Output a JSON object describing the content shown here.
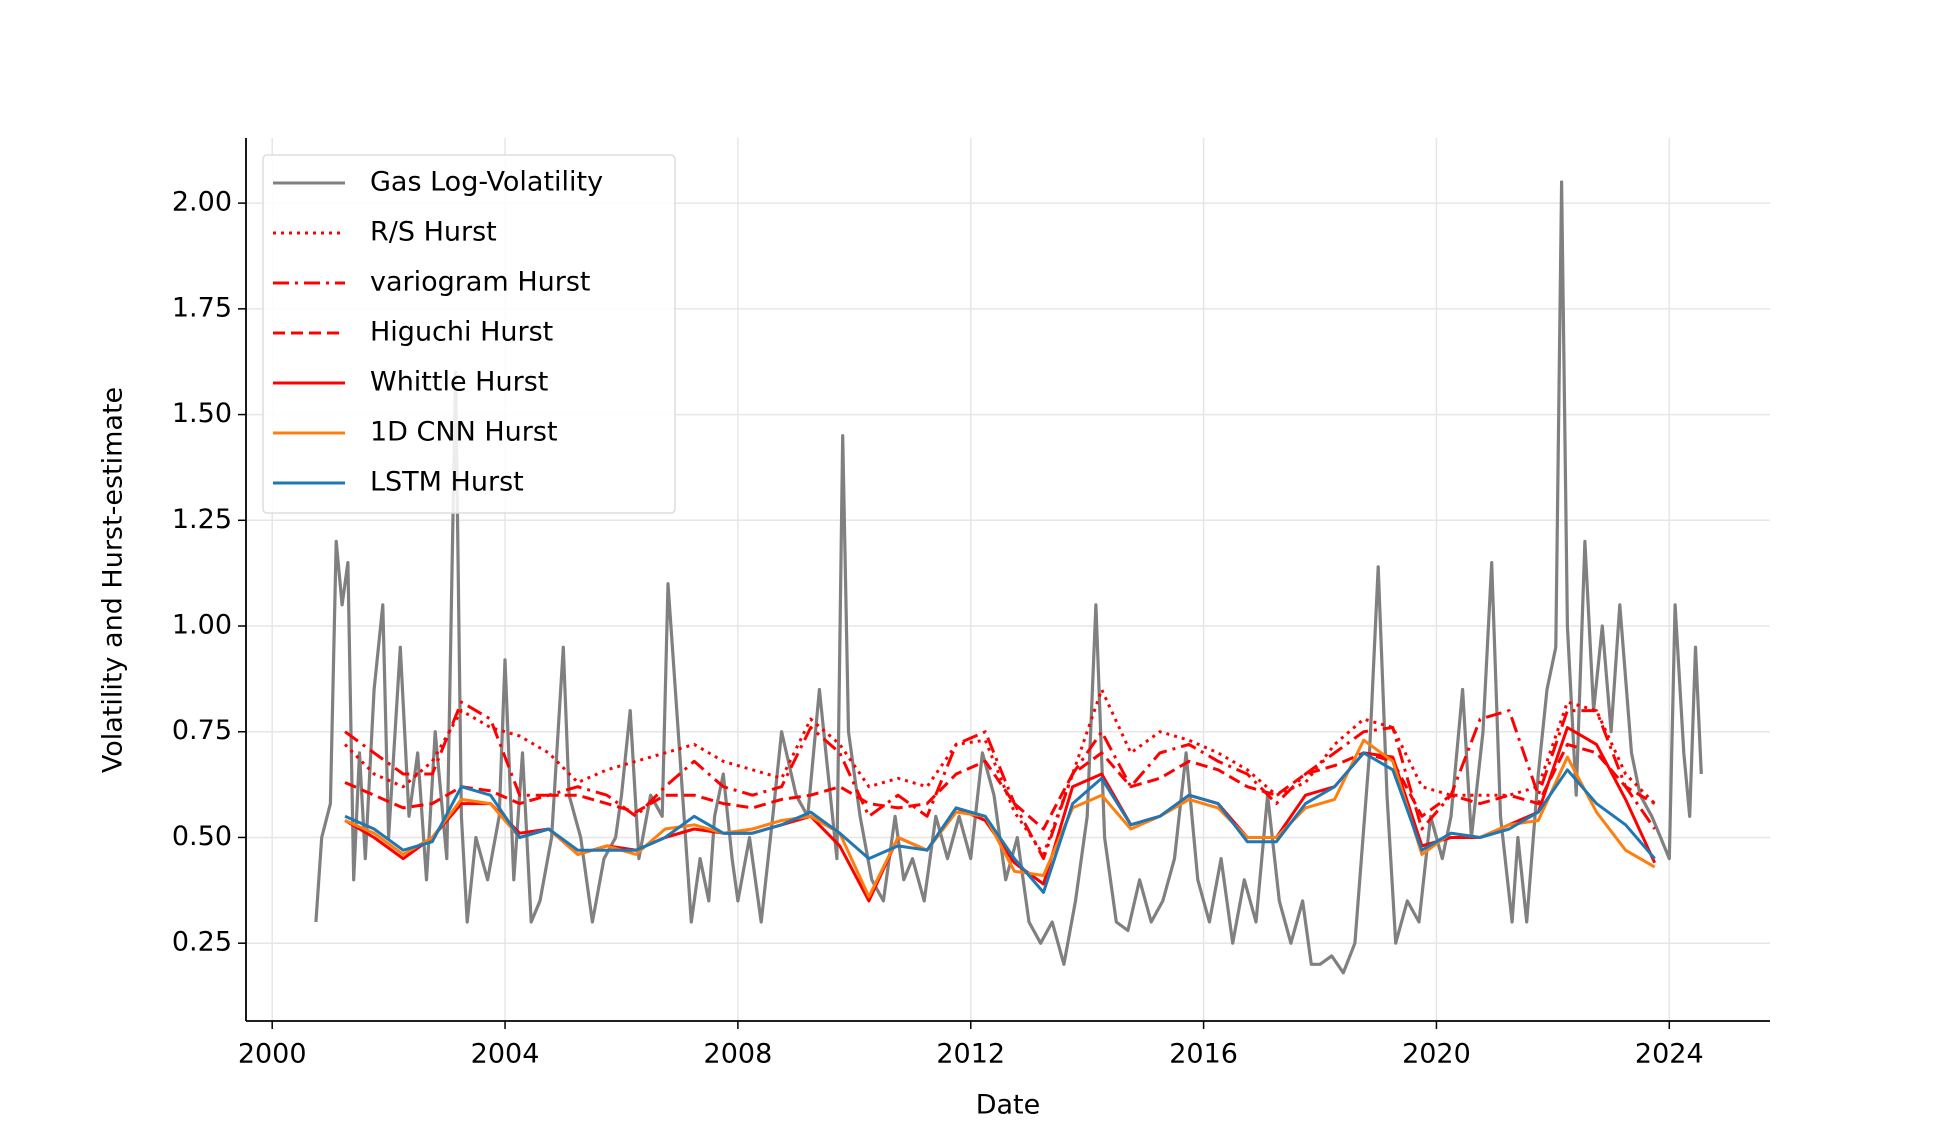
{
  "chart_data": {
    "type": "line",
    "xlabel": "Date",
    "ylabel": "Volatility and Hurst-estimate",
    "xlim": [
      1999.55,
      2025.73
    ],
    "xticks": [
      2000,
      2004,
      2008,
      2012,
      2016,
      2020,
      2024
    ],
    "ylim": [
      0.066,
      2.154
    ],
    "yticks": [
      0.25,
      {
        "value": 0.5,
        "label": "0.50"
      },
      0.75,
      {
        "value": 1.0,
        "label": "1.00"
      },
      1.25,
      {
        "value": 1.5,
        "label": "1.50"
      },
      1.75,
      {
        "value": 2.0,
        "label": "2.00"
      }
    ],
    "grid": true,
    "legend": "upper left",
    "series": [
      {
        "name": "Gas Log-Volatility",
        "color": "#808080",
        "linestyle": "solid",
        "x": [
          2000.75,
          2000.85,
          2001.0,
          2001.1,
          2001.2,
          2001.3,
          2001.4,
          2001.5,
          2001.6,
          2001.75,
          2001.9,
          2002.0,
          2002.2,
          2002.35,
          2002.5,
          2002.65,
          2002.8,
          2003.0,
          2003.15,
          2003.25,
          2003.35,
          2003.5,
          2003.7,
          2003.9,
          2004.0,
          2004.15,
          2004.3,
          2004.45,
          2004.6,
          2004.8,
          2005.0,
          2005.1,
          2005.3,
          2005.5,
          2005.7,
          2005.9,
          2006.0,
          2006.15,
          2006.3,
          2006.5,
          2006.7,
          2006.8,
          2007.0,
          2007.2,
          2007.35,
          2007.5,
          2007.6,
          2007.75,
          2007.9,
          2008.0,
          2008.2,
          2008.4,
          2008.6,
          2008.75,
          2009.0,
          2009.2,
          2009.4,
          2009.55,
          2009.7,
          2009.8,
          2009.9,
          2010.1,
          2010.3,
          2010.5,
          2010.7,
          2010.85,
          2011.0,
          2011.2,
          2011.4,
          2011.6,
          2011.8,
          2012.0,
          2012.2,
          2012.4,
          2012.6,
          2012.8,
          2013.0,
          2013.2,
          2013.4,
          2013.6,
          2013.8,
          2014.0,
          2014.15,
          2014.3,
          2014.5,
          2014.7,
          2014.9,
          2015.1,
          2015.3,
          2015.5,
          2015.7,
          2015.9,
          2016.1,
          2016.3,
          2016.5,
          2016.7,
          2016.9,
          2017.1,
          2017.3,
          2017.5,
          2017.7,
          2017.85,
          2018.0,
          2018.2,
          2018.4,
          2018.6,
          2018.85,
          2019.0,
          2019.15,
          2019.3,
          2019.5,
          2019.7,
          2019.9,
          2020.1,
          2020.25,
          2020.45,
          2020.6,
          2020.8,
          2020.95,
          2021.1,
          2021.3,
          2021.4,
          2021.55,
          2021.75,
          2021.9,
          2022.05,
          2022.15,
          2022.25,
          2022.4,
          2022.55,
          2022.7,
          2022.85,
          2023.0,
          2023.15,
          2023.35,
          2023.5,
          2023.7,
          2023.85,
          2024.0,
          2024.1,
          2024.25,
          2024.35,
          2024.45,
          2024.55
        ],
        "values": [
          0.3,
          0.5,
          0.58,
          1.2,
          1.05,
          1.15,
          0.4,
          0.7,
          0.45,
          0.85,
          1.05,
          0.5,
          0.95,
          0.55,
          0.7,
          0.4,
          0.75,
          0.45,
          1.6,
          0.55,
          0.3,
          0.5,
          0.4,
          0.55,
          0.92,
          0.4,
          0.7,
          0.3,
          0.35,
          0.5,
          0.95,
          0.6,
          0.5,
          0.3,
          0.45,
          0.5,
          0.6,
          0.8,
          0.45,
          0.6,
          0.55,
          1.1,
          0.7,
          0.3,
          0.45,
          0.35,
          0.55,
          0.65,
          0.45,
          0.35,
          0.5,
          0.3,
          0.55,
          0.75,
          0.6,
          0.55,
          0.85,
          0.65,
          0.45,
          1.45,
          0.75,
          0.55,
          0.4,
          0.35,
          0.55,
          0.4,
          0.45,
          0.35,
          0.55,
          0.45,
          0.55,
          0.45,
          0.7,
          0.6,
          0.4,
          0.5,
          0.3,
          0.25,
          0.3,
          0.2,
          0.35,
          0.55,
          1.05,
          0.5,
          0.3,
          0.28,
          0.4,
          0.3,
          0.35,
          0.45,
          0.7,
          0.4,
          0.3,
          0.45,
          0.25,
          0.4,
          0.3,
          0.6,
          0.35,
          0.25,
          0.35,
          0.2,
          0.2,
          0.22,
          0.18,
          0.25,
          0.7,
          1.14,
          0.6,
          0.25,
          0.35,
          0.3,
          0.55,
          0.45,
          0.55,
          0.85,
          0.5,
          0.75,
          1.15,
          0.55,
          0.3,
          0.5,
          0.3,
          0.65,
          0.85,
          0.95,
          2.05,
          1.0,
          0.6,
          1.2,
          0.8,
          1.0,
          0.75,
          1.05,
          0.7,
          0.6,
          0.55,
          0.5,
          0.45,
          1.05,
          0.7,
          0.55,
          0.95,
          0.65
        ]
      },
      {
        "name": "R/S Hurst",
        "color": "#ff0000",
        "linestyle": "dotted",
        "x": [
          2001.25,
          2001.75,
          2002.25,
          2002.75,
          2003.25,
          2003.75,
          2004.25,
          2004.75,
          2005.25,
          2005.75,
          2006.25,
          2006.75,
          2007.25,
          2007.75,
          2008.25,
          2008.75,
          2009.25,
          2009.75,
          2010.25,
          2010.75,
          2011.25,
          2011.75,
          2012.25,
          2012.75,
          2013.25,
          2013.75,
          2014.25,
          2014.75,
          2015.25,
          2015.75,
          2016.25,
          2016.75,
          2017.25,
          2017.75,
          2018.25,
          2018.75,
          2019.25,
          2019.75,
          2020.25,
          2020.75,
          2021.25,
          2021.75,
          2022.25,
          2022.75,
          2023.25,
          2023.75
        ],
        "values": [
          0.72,
          0.65,
          0.62,
          0.68,
          0.8,
          0.76,
          0.74,
          0.7,
          0.63,
          0.66,
          0.68,
          0.7,
          0.72,
          0.68,
          0.66,
          0.64,
          0.78,
          0.72,
          0.62,
          0.64,
          0.62,
          0.72,
          0.73,
          0.56,
          0.46,
          0.65,
          0.85,
          0.7,
          0.75,
          0.73,
          0.7,
          0.66,
          0.6,
          0.63,
          0.72,
          0.78,
          0.76,
          0.62,
          0.6,
          0.6,
          0.6,
          0.62,
          0.82,
          0.8,
          0.65,
          0.58
        ]
      },
      {
        "name": "variogram Hurst",
        "color": "#ff0000",
        "linestyle": "dashdot",
        "x": [
          2001.25,
          2001.75,
          2002.25,
          2002.75,
          2003.25,
          2003.75,
          2004.25,
          2004.75,
          2005.25,
          2005.75,
          2006.25,
          2006.75,
          2007.25,
          2007.75,
          2008.25,
          2008.75,
          2009.25,
          2009.75,
          2010.25,
          2010.75,
          2011.25,
          2011.75,
          2012.25,
          2012.75,
          2013.25,
          2013.75,
          2014.25,
          2014.75,
          2015.25,
          2015.75,
          2016.25,
          2016.75,
          2017.25,
          2017.75,
          2018.25,
          2018.75,
          2019.25,
          2019.75,
          2020.25,
          2020.75,
          2021.25,
          2021.75,
          2022.25,
          2022.75,
          2023.25,
          2023.75
        ],
        "values": [
          0.75,
          0.7,
          0.65,
          0.65,
          0.82,
          0.78,
          0.6,
          0.6,
          0.62,
          0.6,
          0.55,
          0.62,
          0.68,
          0.62,
          0.6,
          0.62,
          0.76,
          0.7,
          0.55,
          0.6,
          0.55,
          0.72,
          0.75,
          0.58,
          0.45,
          0.65,
          0.75,
          0.62,
          0.7,
          0.72,
          0.68,
          0.65,
          0.58,
          0.65,
          0.7,
          0.75,
          0.76,
          0.52,
          0.6,
          0.78,
          0.8,
          0.6,
          0.8,
          0.8,
          0.62,
          0.52
        ]
      },
      {
        "name": "Higuchi Hurst",
        "color": "#ff0000",
        "linestyle": "dashed",
        "x": [
          2001.25,
          2001.75,
          2002.25,
          2002.75,
          2003.25,
          2003.75,
          2004.25,
          2004.75,
          2005.25,
          2005.75,
          2006.25,
          2006.75,
          2007.25,
          2007.75,
          2008.25,
          2008.75,
          2009.25,
          2009.75,
          2010.25,
          2010.75,
          2011.25,
          2011.75,
          2012.25,
          2012.75,
          2013.25,
          2013.75,
          2014.25,
          2014.75,
          2015.25,
          2015.75,
          2016.25,
          2016.75,
          2017.25,
          2017.75,
          2018.25,
          2018.75,
          2019.25,
          2019.75,
          2020.25,
          2020.75,
          2021.25,
          2021.75,
          2022.25,
          2022.75,
          2023.25,
          2023.75
        ],
        "values": [
          0.63,
          0.6,
          0.57,
          0.58,
          0.62,
          0.61,
          0.58,
          0.6,
          0.6,
          0.58,
          0.56,
          0.6,
          0.6,
          0.58,
          0.57,
          0.59,
          0.6,
          0.62,
          0.58,
          0.57,
          0.58,
          0.65,
          0.68,
          0.58,
          0.52,
          0.65,
          0.7,
          0.62,
          0.64,
          0.68,
          0.66,
          0.62,
          0.6,
          0.65,
          0.67,
          0.7,
          0.68,
          0.55,
          0.6,
          0.58,
          0.6,
          0.58,
          0.72,
          0.7,
          0.62,
          0.58
        ]
      },
      {
        "name": "Whittle Hurst",
        "color": "#ff0000",
        "linestyle": "solid",
        "x": [
          2001.25,
          2001.75,
          2002.25,
          2002.75,
          2003.25,
          2003.75,
          2004.25,
          2004.75,
          2005.25,
          2005.75,
          2006.25,
          2006.75,
          2007.25,
          2007.75,
          2008.25,
          2008.75,
          2009.25,
          2009.75,
          2010.25,
          2010.75,
          2011.25,
          2011.75,
          2012.25,
          2012.75,
          2013.25,
          2013.75,
          2014.25,
          2014.75,
          2015.25,
          2015.75,
          2016.25,
          2016.75,
          2017.25,
          2017.75,
          2018.25,
          2018.75,
          2019.25,
          2019.75,
          2020.25,
          2020.75,
          2021.25,
          2021.75,
          2022.25,
          2022.75,
          2023.25,
          2023.75
        ],
        "values": [
          0.54,
          0.5,
          0.45,
          0.5,
          0.58,
          0.58,
          0.51,
          0.52,
          0.46,
          0.48,
          0.47,
          0.5,
          0.52,
          0.51,
          0.51,
          0.53,
          0.55,
          0.48,
          0.35,
          0.5,
          0.47,
          0.57,
          0.54,
          0.44,
          0.39,
          0.62,
          0.65,
          0.53,
          0.55,
          0.6,
          0.58,
          0.5,
          0.5,
          0.6,
          0.62,
          0.7,
          0.69,
          0.48,
          0.5,
          0.5,
          0.53,
          0.56,
          0.76,
          0.72,
          0.59,
          0.44
        ]
      },
      {
        "name": "1D CNN Hurst",
        "color": "#ff7f0e",
        "linestyle": "solid",
        "x": [
          2001.25,
          2001.75,
          2002.25,
          2002.75,
          2003.25,
          2003.75,
          2004.25,
          2004.75,
          2005.25,
          2005.75,
          2006.25,
          2006.75,
          2007.25,
          2007.75,
          2008.25,
          2008.75,
          2009.25,
          2009.75,
          2010.25,
          2010.75,
          2011.25,
          2011.75,
          2012.25,
          2012.75,
          2013.25,
          2013.75,
          2014.25,
          2014.75,
          2015.25,
          2015.75,
          2016.25,
          2016.75,
          2017.25,
          2017.75,
          2018.25,
          2018.75,
          2019.25,
          2019.75,
          2020.25,
          2020.75,
          2021.25,
          2021.75,
          2022.25,
          2022.75,
          2023.25,
          2023.75
        ],
        "values": [
          0.54,
          0.51,
          0.46,
          0.5,
          0.59,
          0.58,
          0.5,
          0.52,
          0.46,
          0.48,
          0.46,
          0.52,
          0.53,
          0.51,
          0.52,
          0.54,
          0.55,
          0.51,
          0.36,
          0.5,
          0.47,
          0.56,
          0.55,
          0.42,
          0.41,
          0.57,
          0.6,
          0.52,
          0.55,
          0.59,
          0.57,
          0.5,
          0.5,
          0.57,
          0.59,
          0.73,
          0.68,
          0.46,
          0.51,
          0.5,
          0.53,
          0.54,
          0.69,
          0.56,
          0.47,
          0.43
        ]
      },
      {
        "name": "LSTM Hurst",
        "color": "#1f77b4",
        "linestyle": "solid",
        "x": [
          2001.25,
          2001.75,
          2002.25,
          2002.75,
          2003.25,
          2003.75,
          2004.25,
          2004.75,
          2005.25,
          2005.75,
          2006.25,
          2006.75,
          2007.25,
          2007.75,
          2008.25,
          2008.75,
          2009.25,
          2009.75,
          2010.25,
          2010.75,
          2011.25,
          2011.75,
          2012.25,
          2012.75,
          2013.25,
          2013.75,
          2014.25,
          2014.75,
          2015.25,
          2015.75,
          2016.25,
          2016.75,
          2017.25,
          2017.75,
          2018.25,
          2018.75,
          2019.25,
          2019.75,
          2020.25,
          2020.75,
          2021.25,
          2021.75,
          2022.25,
          2022.75,
          2023.25,
          2023.75
        ],
        "values": [
          0.55,
          0.52,
          0.47,
          0.49,
          0.62,
          0.6,
          0.5,
          0.52,
          0.47,
          0.47,
          0.47,
          0.5,
          0.55,
          0.51,
          0.51,
          0.53,
          0.56,
          0.51,
          0.45,
          0.48,
          0.47,
          0.57,
          0.55,
          0.45,
          0.37,
          0.58,
          0.64,
          0.53,
          0.55,
          0.6,
          0.58,
          0.49,
          0.49,
          0.58,
          0.62,
          0.7,
          0.66,
          0.47,
          0.51,
          0.5,
          0.52,
          0.56,
          0.66,
          0.58,
          0.53,
          0.45
        ]
      }
    ]
  }
}
